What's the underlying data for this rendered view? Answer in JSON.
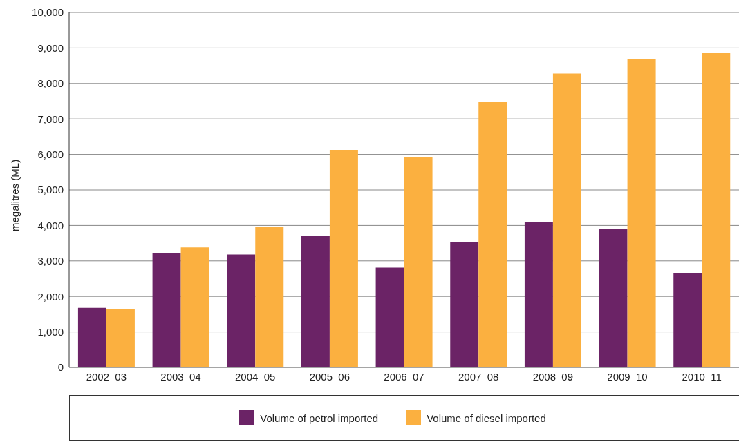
{
  "chart_data": {
    "type": "bar",
    "ylabel": "megalitres (ML)",
    "categories": [
      "2002–03",
      "2003–04",
      "2004–05",
      "2005–06",
      "2006–07",
      "2007–08",
      "2008–09",
      "2009–10",
      "2010–11"
    ],
    "series": [
      {
        "name": "Volume of petrol imported",
        "color": "#6b2366",
        "values": [
          1680,
          3220,
          3180,
          3700,
          2810,
          3540,
          4090,
          3890,
          2650
        ]
      },
      {
        "name": "Volume of diesel imported",
        "color": "#fbb040",
        "values": [
          1640,
          3380,
          3970,
          6130,
          5930,
          7490,
          8280,
          8680,
          8850
        ]
      }
    ],
    "ylim": [
      0,
      10000
    ],
    "yticks": [
      0,
      {
        "value": 1000,
        "label": "1,000"
      },
      {
        "value": 2000,
        "label": "2,000"
      },
      {
        "value": 3000,
        "label": "3,000"
      },
      {
        "value": 4000,
        "label": "4,000"
      },
      {
        "value": 5000,
        "label": "5,000"
      },
      {
        "value": 6000,
        "label": "6,000"
      },
      {
        "value": 7000,
        "label": "7,000"
      },
      {
        "value": 8000,
        "label": "8,000"
      },
      {
        "value": 9000,
        "label": "9,000"
      },
      {
        "value": 10000,
        "label": "10,000"
      }
    ],
    "grid": "y",
    "legend": "bottom"
  }
}
